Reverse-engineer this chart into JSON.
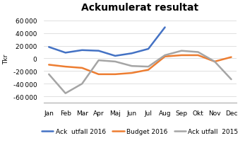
{
  "title": "Ackumulerat resultat",
  "ylabel": "Tkr",
  "months": [
    "Jan",
    "Feb",
    "Mar",
    "Apr",
    "Maj",
    "Jun",
    "Jul",
    "Aug",
    "Sep",
    "Okt",
    "Nov",
    "Dec"
  ],
  "series": {
    "Ack  utfall 2016": {
      "values": [
        18000,
        9000,
        13000,
        12000,
        4000,
        8000,
        15000,
        49000,
        null,
        null,
        null,
        null
      ],
      "color": "#4472C4",
      "linewidth": 1.8
    },
    "Budget 2016": {
      "values": [
        -10000,
        -13000,
        -15000,
        -25000,
        -25000,
        -23000,
        -18000,
        3000,
        5000,
        5000,
        -5000,
        2000
      ],
      "color": "#ED7D31",
      "linewidth": 1.8
    },
    "Ack utfall  2015": {
      "values": [
        -25000,
        -55000,
        -40000,
        -3000,
        -5000,
        -12000,
        -13000,
        5000,
        12000,
        10000,
        -5000,
        -33000
      ],
      "color": "#A5A5A5",
      "linewidth": 1.8
    }
  },
  "ylim": [
    -70000,
    70000
  ],
  "yticks": [
    -60000,
    -40000,
    -20000,
    0,
    20000,
    40000,
    60000
  ],
  "legend_order": [
    "Ack  utfall 2016",
    "Budget 2016",
    "Ack utfall  2015"
  ],
  "background_color": "#FFFFFF",
  "title_fontsize": 10,
  "axis_fontsize": 6.5,
  "legend_fontsize": 6.5
}
